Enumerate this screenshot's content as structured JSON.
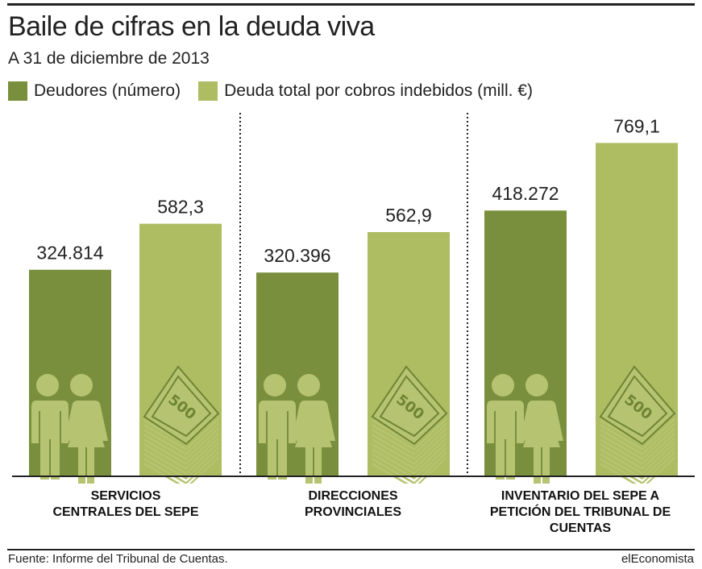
{
  "title": "Baile de cifras en la deuda viva",
  "subtitle": "A 31 de diciembre de 2013",
  "colors": {
    "deudores": "#7a8f3d",
    "deuda": "#aebc62",
    "icon": "#b6c471",
    "icon_dark": "#6f8434"
  },
  "legend": [
    {
      "label": "Deudores (número)",
      "color": "#7a8f3d"
    },
    {
      "label": "Deuda total por cobros indebidos (mill. €)",
      "color": "#aebc62"
    }
  ],
  "chart_data": {
    "type": "bar",
    "categories": [
      "SERVICIOS CENTRALES DEL SEPE",
      "DIRECCIONES PROVINCIALES",
      "INVENTARIO DEL SEPE A PETICIÓN DEL TRIBUNAL DE CUENTAS"
    ],
    "series": [
      {
        "name": "Deudores (número)",
        "values": [
          324814,
          320396,
          418272
        ],
        "labels": [
          "324.814",
          "320.396",
          "418.272"
        ]
      },
      {
        "name": "Deuda total por cobros indebidos (mill. €)",
        "values": [
          582.3,
          562.9,
          769.1
        ],
        "labels": [
          "582,3",
          "562,9",
          "769,1"
        ]
      }
    ],
    "icons": {
      "deudores": "people-icon",
      "deuda": "banknote-stack-icon",
      "banknote_text": "500"
    },
    "grid": false,
    "legend_position": "top-left"
  },
  "category_labels": [
    "SERVICIOS\nCENTRALES DEL SEPE",
    "DIRECCIONES\nPROVINCIALES",
    "INVENTARIO DEL SEPE A\nPETICIÓN DEL TRIBUNAL DE\nCUENTAS"
  ],
  "footer": {
    "source": "Fuente: Informe del Tribunal de Cuentas.",
    "brand": "elEconomista"
  }
}
